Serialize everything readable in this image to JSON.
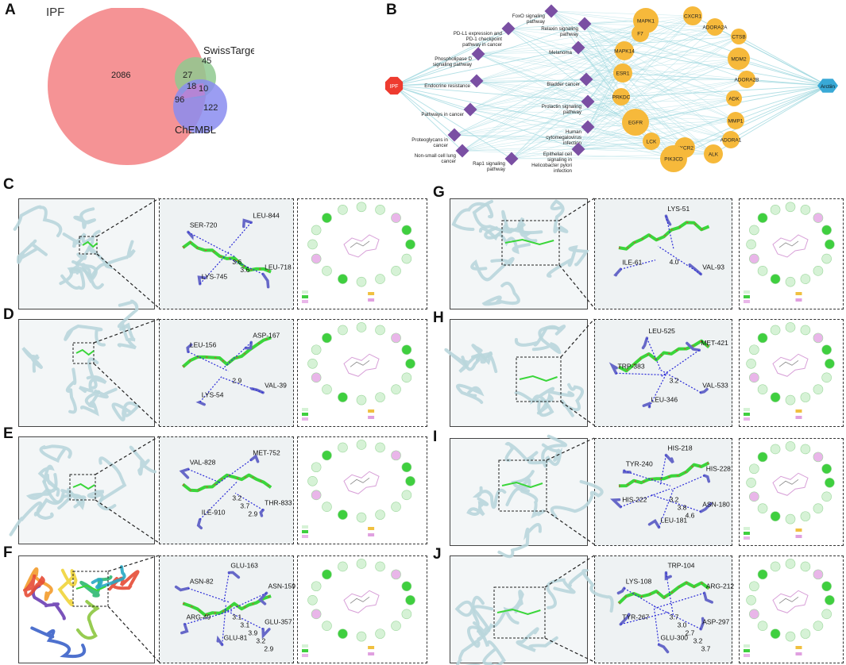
{
  "labels": [
    "A",
    "B",
    "C",
    "D",
    "E",
    "F",
    "G",
    "H",
    "I",
    "J"
  ],
  "colors": {
    "ipf": "#f4878a",
    "swiss": "#8fc98f",
    "chembl": "#8a8cf0",
    "overlap_purple": "#cc7fd6",
    "disease_node": "#ee3b2f",
    "pathway_node": "#7a4fa3",
    "target_node": "#f6b93b",
    "drug_node": "#39a9d6",
    "edge": "#9fd8df",
    "ligand": "#3ad63a",
    "residue": "#6668c8",
    "protein": "#b9d6dc"
  },
  "venn": {
    "sets": [
      "IPF",
      "SwissTarget",
      "ChEMBL"
    ],
    "regions": {
      "ipf_only": "2086",
      "swiss_only": "45",
      "chembl_only": "122",
      "ipf_swiss": "27",
      "ipf_chembl": "96",
      "swiss_chembl": "10",
      "all": "18"
    }
  },
  "network": {
    "disease": "IPF",
    "drug": "Arctiin",
    "pathways": [
      "FoxO signaling pathway",
      "PD-L1 expression and PD-1 checkpoint pathway in cancer",
      "Relaxin signaling pathway",
      "Phospholipase D signaling pathway",
      "Melanoma",
      "Endocrine resistance",
      "Bladder cancer",
      "Pathways in cancer",
      "Prolactin signaling pathway",
      "Proteoglycans in cancer",
      "Human cytomegalovirus infection",
      "Non-small cell lung cancer",
      "Epithelial cell signaling in Helicobacter pylori infection",
      "Rap1 signaling pathway"
    ],
    "targets": [
      "MAPK1",
      "CXCR1",
      "ADORA2A",
      "F7",
      "CTSB",
      "MAPK14",
      "MDM2",
      "ESR1",
      "ADORA2B",
      "PRKDC",
      "ADK",
      "EGFR",
      "MMP1",
      "LCK",
      "CXCR2",
      "PIK3CD",
      "ALK",
      "ADORA1"
    ]
  },
  "docking": {
    "C": {
      "residues": [
        "LEU-718",
        "LYS-745",
        "SER-720",
        "LEU-844"
      ],
      "distances": [
        "3.6",
        "3.6"
      ]
    },
    "D": {
      "residues": [
        "VAL-39",
        "LYS-54",
        "LEU-156",
        "ASP-167"
      ],
      "distances": [
        "2.9"
      ]
    },
    "E": {
      "residues": [
        "THR-833",
        "ILE-910",
        "VAL-828",
        "MET-752"
      ],
      "distances": [
        "3.2",
        "3.7",
        "2.9"
      ]
    },
    "F": {
      "residues": [
        "GLU-357",
        "GLU-81",
        "ARG-49",
        "ASN-82",
        "GLU-163",
        "ASN-159"
      ],
      "distances": [
        "3.1",
        "3.1",
        "3.9",
        "3.2",
        "2.9"
      ]
    },
    "G": {
      "residues": [
        "VAL-93",
        "ILE-61",
        "LYS-51"
      ],
      "distances": [
        "4.0"
      ]
    },
    "H": {
      "residues": [
        "VAL-533",
        "LEU-346",
        "TRP-383",
        "LEU-525",
        "MET-421"
      ],
      "distances": [
        "3.2"
      ]
    },
    "I": {
      "residues": [
        "ASN-180",
        "LEU-181",
        "HIS-222",
        "TYR-240",
        "HIS-218",
        "HIS-228"
      ],
      "distances": [
        "3.2",
        "3.8",
        "4.6"
      ]
    },
    "J": {
      "residues": [
        "ASP-297",
        "GLU-300",
        "TYR-267",
        "LYS-108",
        "TRP-104",
        "ARG-212"
      ],
      "distances": [
        "3.7",
        "3.0",
        "2.7",
        "3.2",
        "3.7"
      ]
    }
  }
}
